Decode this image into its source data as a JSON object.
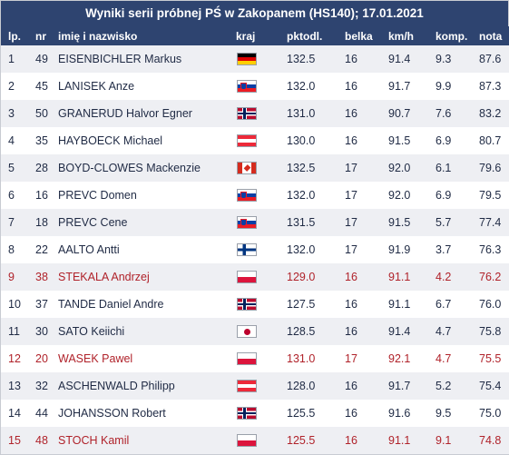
{
  "title": "Wyniki serii próbnej PŚ w Zakopanem (HS140); 17.01.2021",
  "columns": {
    "lp": "lp.",
    "nr": "nr",
    "name": "imię i nazwisko",
    "kraj": "kraj",
    "pkt": "pktodl.",
    "belka": "belka",
    "kmh": "km/h",
    "komp": "komp.",
    "nota": "nota"
  },
  "colors": {
    "header_bg": "#2e4470",
    "odd_row_bg": "#eeeff3",
    "text": "#1f2a44",
    "highlight_text": "#b0222a"
  },
  "rows": [
    {
      "lp": "1",
      "nr": "49",
      "name": "EISENBICHLER Markus",
      "flag": "de",
      "flag_icon": "germany-flag-icon",
      "pkt": "132.5",
      "belka": "16",
      "kmh": "91.4",
      "komp": "9.3",
      "nota": "87.6",
      "highlight": false
    },
    {
      "lp": "2",
      "nr": "45",
      "name": "LANISEK Anze",
      "flag": "si",
      "flag_icon": "slovenia-flag-icon",
      "pkt": "132.0",
      "belka": "16",
      "kmh": "91.7",
      "komp": "9.9",
      "nota": "87.3",
      "highlight": false
    },
    {
      "lp": "3",
      "nr": "50",
      "name": "GRANERUD Halvor Egner",
      "flag": "no",
      "flag_icon": "norway-flag-icon",
      "pkt": "131.0",
      "belka": "16",
      "kmh": "90.7",
      "komp": "7.6",
      "nota": "83.2",
      "highlight": false
    },
    {
      "lp": "4",
      "nr": "35",
      "name": "HAYBOECK Michael",
      "flag": "at",
      "flag_icon": "austria-flag-icon",
      "pkt": "130.0",
      "belka": "16",
      "kmh": "91.5",
      "komp": "6.9",
      "nota": "80.7",
      "highlight": false
    },
    {
      "lp": "5",
      "nr": "28",
      "name": "BOYD-CLOWES Mackenzie",
      "flag": "ca",
      "flag_icon": "canada-flag-icon",
      "pkt": "132.5",
      "belka": "17",
      "kmh": "92.0",
      "komp": "6.1",
      "nota": "79.6",
      "highlight": false
    },
    {
      "lp": "6",
      "nr": "16",
      "name": "PREVC Domen",
      "flag": "si",
      "flag_icon": "slovenia-flag-icon",
      "pkt": "132.0",
      "belka": "17",
      "kmh": "92.0",
      "komp": "6.9",
      "nota": "79.5",
      "highlight": false
    },
    {
      "lp": "7",
      "nr": "18",
      "name": "PREVC Cene",
      "flag": "si",
      "flag_icon": "slovenia-flag-icon",
      "pkt": "131.5",
      "belka": "17",
      "kmh": "91.5",
      "komp": "5.7",
      "nota": "77.4",
      "highlight": false
    },
    {
      "lp": "8",
      "nr": "22",
      "name": "AALTO Antti",
      "flag": "fi",
      "flag_icon": "finland-flag-icon",
      "pkt": "132.0",
      "belka": "17",
      "kmh": "91.9",
      "komp": "3.7",
      "nota": "76.3",
      "highlight": false
    },
    {
      "lp": "9",
      "nr": "38",
      "name": "STEKALA Andrzej",
      "flag": "pl",
      "flag_icon": "poland-flag-icon",
      "pkt": "129.0",
      "belka": "16",
      "kmh": "91.1",
      "komp": "4.2",
      "nota": "76.2",
      "highlight": true
    },
    {
      "lp": "10",
      "nr": "37",
      "name": "TANDE Daniel Andre",
      "flag": "no",
      "flag_icon": "norway-flag-icon",
      "pkt": "127.5",
      "belka": "16",
      "kmh": "91.1",
      "komp": "6.7",
      "nota": "76.0",
      "highlight": false
    },
    {
      "lp": "11",
      "nr": "30",
      "name": "SATO Keiichi",
      "flag": "jp",
      "flag_icon": "japan-flag-icon",
      "pkt": "128.5",
      "belka": "16",
      "kmh": "91.4",
      "komp": "4.7",
      "nota": "75.8",
      "highlight": false
    },
    {
      "lp": "12",
      "nr": "20",
      "name": "WASEK Pawel",
      "flag": "pl",
      "flag_icon": "poland-flag-icon",
      "pkt": "131.0",
      "belka": "17",
      "kmh": "92.1",
      "komp": "4.7",
      "nota": "75.5",
      "highlight": true
    },
    {
      "lp": "13",
      "nr": "32",
      "name": "ASCHENWALD Philipp",
      "flag": "at",
      "flag_icon": "austria-flag-icon",
      "pkt": "128.0",
      "belka": "16",
      "kmh": "91.7",
      "komp": "5.2",
      "nota": "75.4",
      "highlight": false
    },
    {
      "lp": "14",
      "nr": "44",
      "name": "JOHANSSON Robert",
      "flag": "no",
      "flag_icon": "norway-flag-icon",
      "pkt": "125.5",
      "belka": "16",
      "kmh": "91.6",
      "komp": "9.5",
      "nota": "75.0",
      "highlight": false
    },
    {
      "lp": "15",
      "nr": "48",
      "name": "STOCH Kamil",
      "flag": "pl",
      "flag_icon": "poland-flag-icon",
      "pkt": "125.5",
      "belka": "16",
      "kmh": "91.1",
      "komp": "9.1",
      "nota": "74.8",
      "highlight": true
    }
  ]
}
